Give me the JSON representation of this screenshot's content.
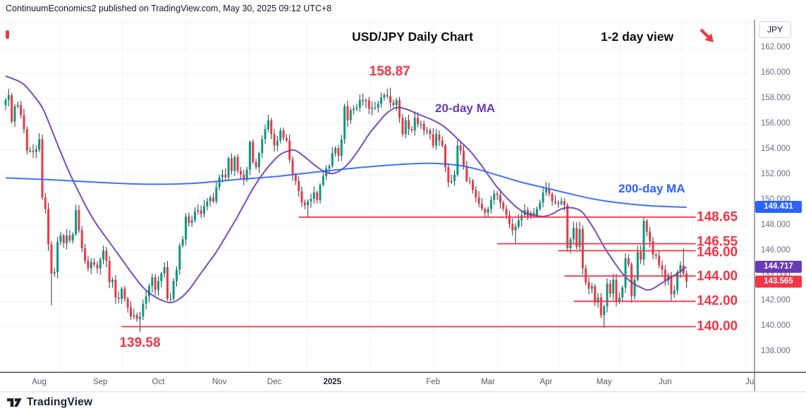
{
  "header": {
    "attribution": "ContinuumEconomics2 published on TradingView.com, May 30, 2025 09:12 UTC+8"
  },
  "titles": {
    "main": "USD/JPY Daily Chart",
    "view_note": "1-2 day view"
  },
  "axis": {
    "symbol_currency": "JPY"
  },
  "footer": {
    "brand": "TradingView"
  },
  "colors": {
    "red": "#f23645",
    "purple": "#673ab7",
    "blue": "#2962ff",
    "candle_up": "#089981",
    "candle_down": "#f23645",
    "wick": "#303741",
    "grid": "#f0f3fa",
    "axis_text": "#696e79",
    "separator": "#4c4f59"
  },
  "chart_data": {
    "type": "candlestick",
    "symbol": "USD/JPY",
    "timeframe": "Daily",
    "title": "USD/JPY Daily Chart",
    "ylim": [
      136.4,
      164.2
    ],
    "y_axis_ticks": [
      "162.000",
      "160.000",
      "158.000",
      "156.000",
      "154.000",
      "152.000",
      "150.000",
      "148.000",
      "146.000",
      "144.000",
      "142.000",
      "140.000",
      "138.000"
    ],
    "x_axis_labels": [
      {
        "text": "Aug",
        "day": 11
      },
      {
        "text": "Sep",
        "day": 31
      },
      {
        "text": "Oct",
        "day": 50
      },
      {
        "text": "Nov",
        "day": 70
      },
      {
        "text": "Dec",
        "day": 88
      },
      {
        "text": "2025",
        "day": 107,
        "strong": true
      },
      {
        "text": "Feb",
        "day": 140
      },
      {
        "text": "Mar",
        "day": 158
      },
      {
        "text": "Apr",
        "day": 177
      },
      {
        "text": "May",
        "day": 196
      },
      {
        "text": "Jun",
        "day": 216
      },
      {
        "text": "Jul",
        "day": 244
      }
    ],
    "candles": {
      "closes": [
        157.9,
        158.3,
        156.2,
        157.4,
        157.5,
        156.7,
        155.6,
        153.9,
        153.9,
        153.8,
        154.0,
        154.8,
        150.2,
        149.3,
        146.5,
        144.2,
        144.3,
        146.7,
        147.2,
        146.6,
        147.2,
        146.8,
        147.3,
        149.2,
        147.6,
        146.2,
        145.2,
        144.6,
        145.1,
        144.9,
        144.6,
        145.3,
        146.0,
        145.2,
        143.5,
        143.7,
        142.3,
        142.2,
        143.0,
        142.2,
        141.5,
        140.8,
        140.9,
        140.6,
        140.8,
        141.8,
        142.4,
        143.2,
        143.9,
        142.9,
        143.6,
        144.2,
        144.7,
        142.2,
        142.2,
        143.6,
        144.5,
        146.4,
        146.9,
        148.7,
        148.2,
        148.4,
        149.1,
        149.2,
        148.9,
        149.5,
        149.9,
        150.2,
        149.9,
        151.0,
        151.8,
        152.0,
        151.8,
        153.3,
        152.3,
        153.4,
        152.3,
        152.0,
        151.6,
        152.4,
        154.6,
        153.0,
        152.6,
        153.7,
        154.8,
        155.6,
        156.3,
        155.2,
        154.3,
        154.7,
        155.5,
        154.9,
        154.7,
        153.2,
        152.0,
        151.5,
        150.7,
        149.8,
        149.6,
        149.9,
        150.1,
        150.6,
        150.0,
        151.2,
        151.9,
        152.5,
        152.7,
        153.7,
        154.1,
        153.5,
        154.8,
        157.4,
        156.3,
        157.1,
        157.2,
        157.3,
        157.9,
        157.8,
        157.9,
        157.2,
        157.3,
        157.3,
        157.6,
        158.1,
        158.3,
        158.2,
        157.7,
        157.5,
        157.9,
        156.5,
        155.2,
        156.3,
        155.6,
        155.5,
        156.5,
        156.0,
        156.0,
        155.5,
        155.5,
        155.2,
        154.3,
        155.2,
        154.7,
        154.3,
        152.6,
        151.4,
        151.5,
        152.0,
        154.3,
        153.9,
        152.7,
        151.5,
        151.5,
        150.8,
        150.2,
        149.7,
        149.3,
        149.0,
        149.3,
        150.0,
        150.5,
        150.4,
        149.8,
        149.3,
        148.8,
        148.1,
        147.6,
        147.9,
        148.4,
        148.8,
        149.2,
        148.7,
        149.0,
        148.8,
        149.3,
        149.8,
        150.6,
        150.9,
        150.5,
        149.9,
        149.8,
        149.7,
        149.9,
        149.6,
        146.2,
        146.9,
        147.8,
        146.3,
        147.7,
        144.6,
        143.5,
        143.0,
        143.2,
        141.9,
        142.3,
        140.9,
        141.6,
        143.4,
        142.6,
        143.7,
        142.0,
        142.3,
        143.1,
        145.4,
        144.9,
        142.4,
        143.7,
        145.9,
        145.3,
        148.35,
        147.5,
        146.75,
        145.7,
        145.6,
        144.85,
        144.5,
        143.65,
        144.0,
        142.55,
        142.85,
        144.3,
        144.85,
        144.2,
        143.57
      ],
      "wick_overrides": {
        "15": {
          "low": 141.68
        },
        "44": {
          "low": 139.58
        },
        "80": {
          "high": 154.71
        },
        "99": {
          "low": 148.65
        },
        "124": {
          "high": 158.45
        },
        "126": {
          "high": 158.87
        },
        "157": {
          "low": 148.57
        },
        "167": {
          "low": 146.55
        },
        "188": {
          "high": 148.28
        },
        "196": {
          "low": 139.89
        },
        "209": {
          "high": 148.65
        },
        "222": {
          "high": 146.19
        }
      }
    },
    "moving_averages": [
      {
        "name": "20-day MA",
        "color": "#673ab7",
        "points": [
          [
            0,
            159.8
          ],
          [
            5,
            159.3
          ],
          [
            8,
            158.6
          ],
          [
            12,
            157.3
          ],
          [
            15,
            155.6
          ],
          [
            18,
            153.8
          ],
          [
            21,
            152.1
          ],
          [
            24,
            150.6
          ],
          [
            27,
            149.2
          ],
          [
            30,
            148.0
          ],
          [
            33,
            147.0
          ],
          [
            36,
            146.0
          ],
          [
            39,
            145.0
          ],
          [
            42,
            144.0
          ],
          [
            45,
            143.1
          ],
          [
            48,
            142.5
          ],
          [
            51,
            142.1
          ],
          [
            54,
            141.9
          ],
          [
            57,
            142.2
          ],
          [
            60,
            142.9
          ],
          [
            63,
            143.9
          ],
          [
            66,
            144.9
          ],
          [
            69,
            145.9
          ],
          [
            72,
            147.1
          ],
          [
            75,
            148.3
          ],
          [
            78,
            149.6
          ],
          [
            81,
            150.9
          ],
          [
            84,
            152.0
          ],
          [
            87,
            152.9
          ],
          [
            90,
            153.6
          ],
          [
            93,
            153.9
          ],
          [
            95,
            153.9
          ],
          [
            98,
            153.4
          ],
          [
            101,
            152.8
          ],
          [
            104,
            152.3
          ],
          [
            107,
            152.1
          ],
          [
            110,
            152.4
          ],
          [
            113,
            153.1
          ],
          [
            116,
            154.1
          ],
          [
            119,
            155.2
          ],
          [
            122,
            156.1
          ],
          [
            125,
            156.9
          ],
          [
            128,
            157.3
          ],
          [
            131,
            157.2
          ],
          [
            134,
            156.9
          ],
          [
            137,
            156.6
          ],
          [
            140,
            156.3
          ],
          [
            143,
            155.9
          ],
          [
            146,
            155.3
          ],
          [
            149,
            154.6
          ],
          [
            152,
            153.9
          ],
          [
            155,
            153.0
          ],
          [
            158,
            152.0
          ],
          [
            161,
            151.0
          ],
          [
            164,
            150.2
          ],
          [
            167,
            149.5
          ],
          [
            170,
            149.0
          ],
          [
            173,
            148.8
          ],
          [
            176,
            148.7
          ],
          [
            179,
            148.9
          ],
          [
            182,
            149.3
          ],
          [
            185,
            149.4
          ],
          [
            188,
            149.2
          ],
          [
            190,
            148.7
          ],
          [
            193,
            147.6
          ],
          [
            196,
            146.3
          ],
          [
            199,
            145.2
          ],
          [
            202,
            144.2
          ],
          [
            205,
            143.5
          ],
          [
            208,
            143.1
          ],
          [
            210,
            142.9
          ],
          [
            212,
            143.0
          ],
          [
            214,
            143.3
          ],
          [
            216,
            143.6
          ],
          [
            218,
            143.9
          ],
          [
            220,
            144.2
          ],
          [
            223,
            144.717
          ]
        ]
      },
      {
        "name": "200-day MA",
        "color": "#2962ff",
        "points": [
          [
            0,
            151.75
          ],
          [
            15,
            151.6
          ],
          [
            30,
            151.4
          ],
          [
            45,
            151.25
          ],
          [
            60,
            151.3
          ],
          [
            75,
            151.6
          ],
          [
            90,
            151.9
          ],
          [
            105,
            152.3
          ],
          [
            120,
            152.65
          ],
          [
            132,
            152.85
          ],
          [
            140,
            152.9
          ],
          [
            148,
            152.75
          ],
          [
            155,
            152.4
          ],
          [
            162,
            151.9
          ],
          [
            169,
            151.4
          ],
          [
            176,
            151.0
          ],
          [
            183,
            150.6
          ],
          [
            190,
            150.2
          ],
          [
            197,
            149.9
          ],
          [
            204,
            149.7
          ],
          [
            211,
            149.55
          ],
          [
            217,
            149.48
          ],
          [
            223,
            149.431
          ]
        ]
      }
    ],
    "price_levels": [
      {
        "label": "148.65",
        "value": 148.65,
        "start_day": 96,
        "end_day": 226
      },
      {
        "label": "146.55",
        "value": 146.55,
        "start_day": 161,
        "end_day": 226
      },
      {
        "label": "146.00",
        "value": 146.0,
        "start_day": 181,
        "end_day": 226
      },
      {
        "label": "144.00",
        "value": 144.0,
        "start_day": 183,
        "end_day": 226
      },
      {
        "label": "142.00",
        "value": 142.0,
        "start_day": 186,
        "end_day": 226
      },
      {
        "label": "140.00",
        "value": 140.0,
        "start_day": 38,
        "end_day": 226
      }
    ],
    "annotations": [
      {
        "text": "158.87",
        "day": 125.8,
        "price": 160.1,
        "kind": "high"
      },
      {
        "text": "139.58",
        "day": 44,
        "price": 138.7,
        "kind": "low"
      }
    ],
    "axis_badges": [
      {
        "text": "149.431",
        "value": 149.431,
        "color": "#2962ff"
      },
      {
        "text": "144.717",
        "value": 144.717,
        "color": "#673ab7"
      },
      {
        "text": "143.565",
        "value": 143.565,
        "color": "#f23645"
      }
    ]
  }
}
